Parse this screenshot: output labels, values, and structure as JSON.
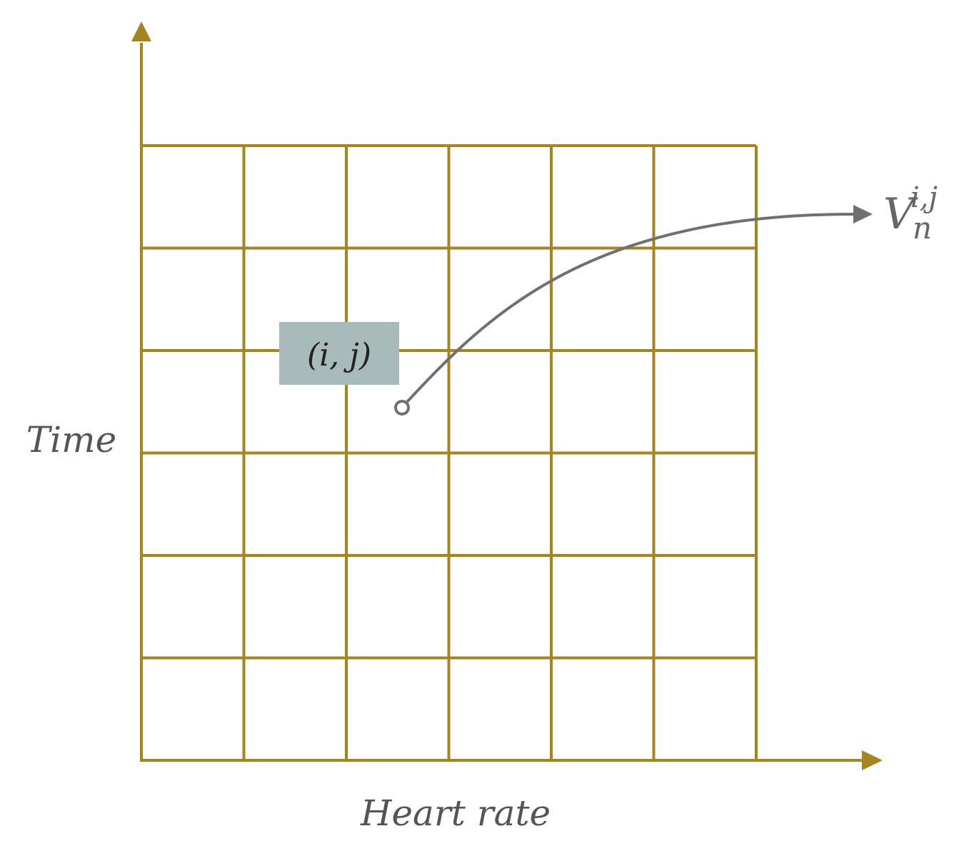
{
  "axes": {
    "y_label": "Time",
    "x_label": "Heart rate"
  },
  "cell_label": "(i, j)",
  "output_label": {
    "base": "V",
    "subscript": "n",
    "superscript": "i,j"
  }
}
